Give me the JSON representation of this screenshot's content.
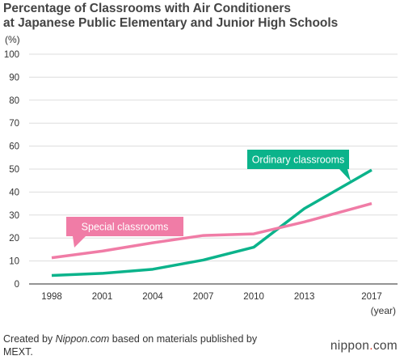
{
  "title_line1": "Percentage of Classrooms with Air Conditioners",
  "title_line2": "at Japanese Public Elementary and Junior High Schools",
  "y_unit": "(%)",
  "x_unit": "(year)",
  "source": {
    "prefix": "Created by ",
    "brand": "Nippon.com",
    "suffix": " based on materials published by MEXT."
  },
  "logo": {
    "text": "nippon",
    "dot": ".",
    "tld": "com"
  },
  "colors": {
    "ordinary": "#0bb38b",
    "special": "#f07ca6",
    "axis": "#555555",
    "grid": "#dddddd"
  },
  "chart_data": {
    "type": "line",
    "x": [
      1998,
      2001,
      2004,
      2007,
      2010,
      2013,
      2017
    ],
    "x_tick_labels": [
      "1998",
      "2001",
      "2004",
      "2007",
      "2010",
      "2013",
      "2017"
    ],
    "y_tick_labels": [
      "0",
      "10",
      "20",
      "30",
      "40",
      "50",
      "60",
      "70",
      "80",
      "90",
      "100"
    ],
    "ylim": [
      0,
      100
    ],
    "grid": true,
    "series": [
      {
        "name": "Ordinary classrooms",
        "key": "ordinary",
        "points": [
          [
            1998,
            3.7
          ],
          [
            2001,
            4.6
          ],
          [
            2004,
            6.4
          ],
          [
            2007,
            10.4
          ],
          [
            2010,
            16.0
          ],
          [
            2013,
            32.8
          ],
          [
            2017,
            49.6
          ]
        ]
      },
      {
        "name": "Special classrooms",
        "key": "special",
        "points": [
          [
            1998,
            11.4
          ],
          [
            2001,
            14.3
          ],
          [
            2004,
            17.9
          ],
          [
            2007,
            21.1
          ],
          [
            2010,
            21.8
          ],
          [
            2013,
            27.0
          ],
          [
            2017,
            35.0
          ]
        ]
      }
    ]
  }
}
